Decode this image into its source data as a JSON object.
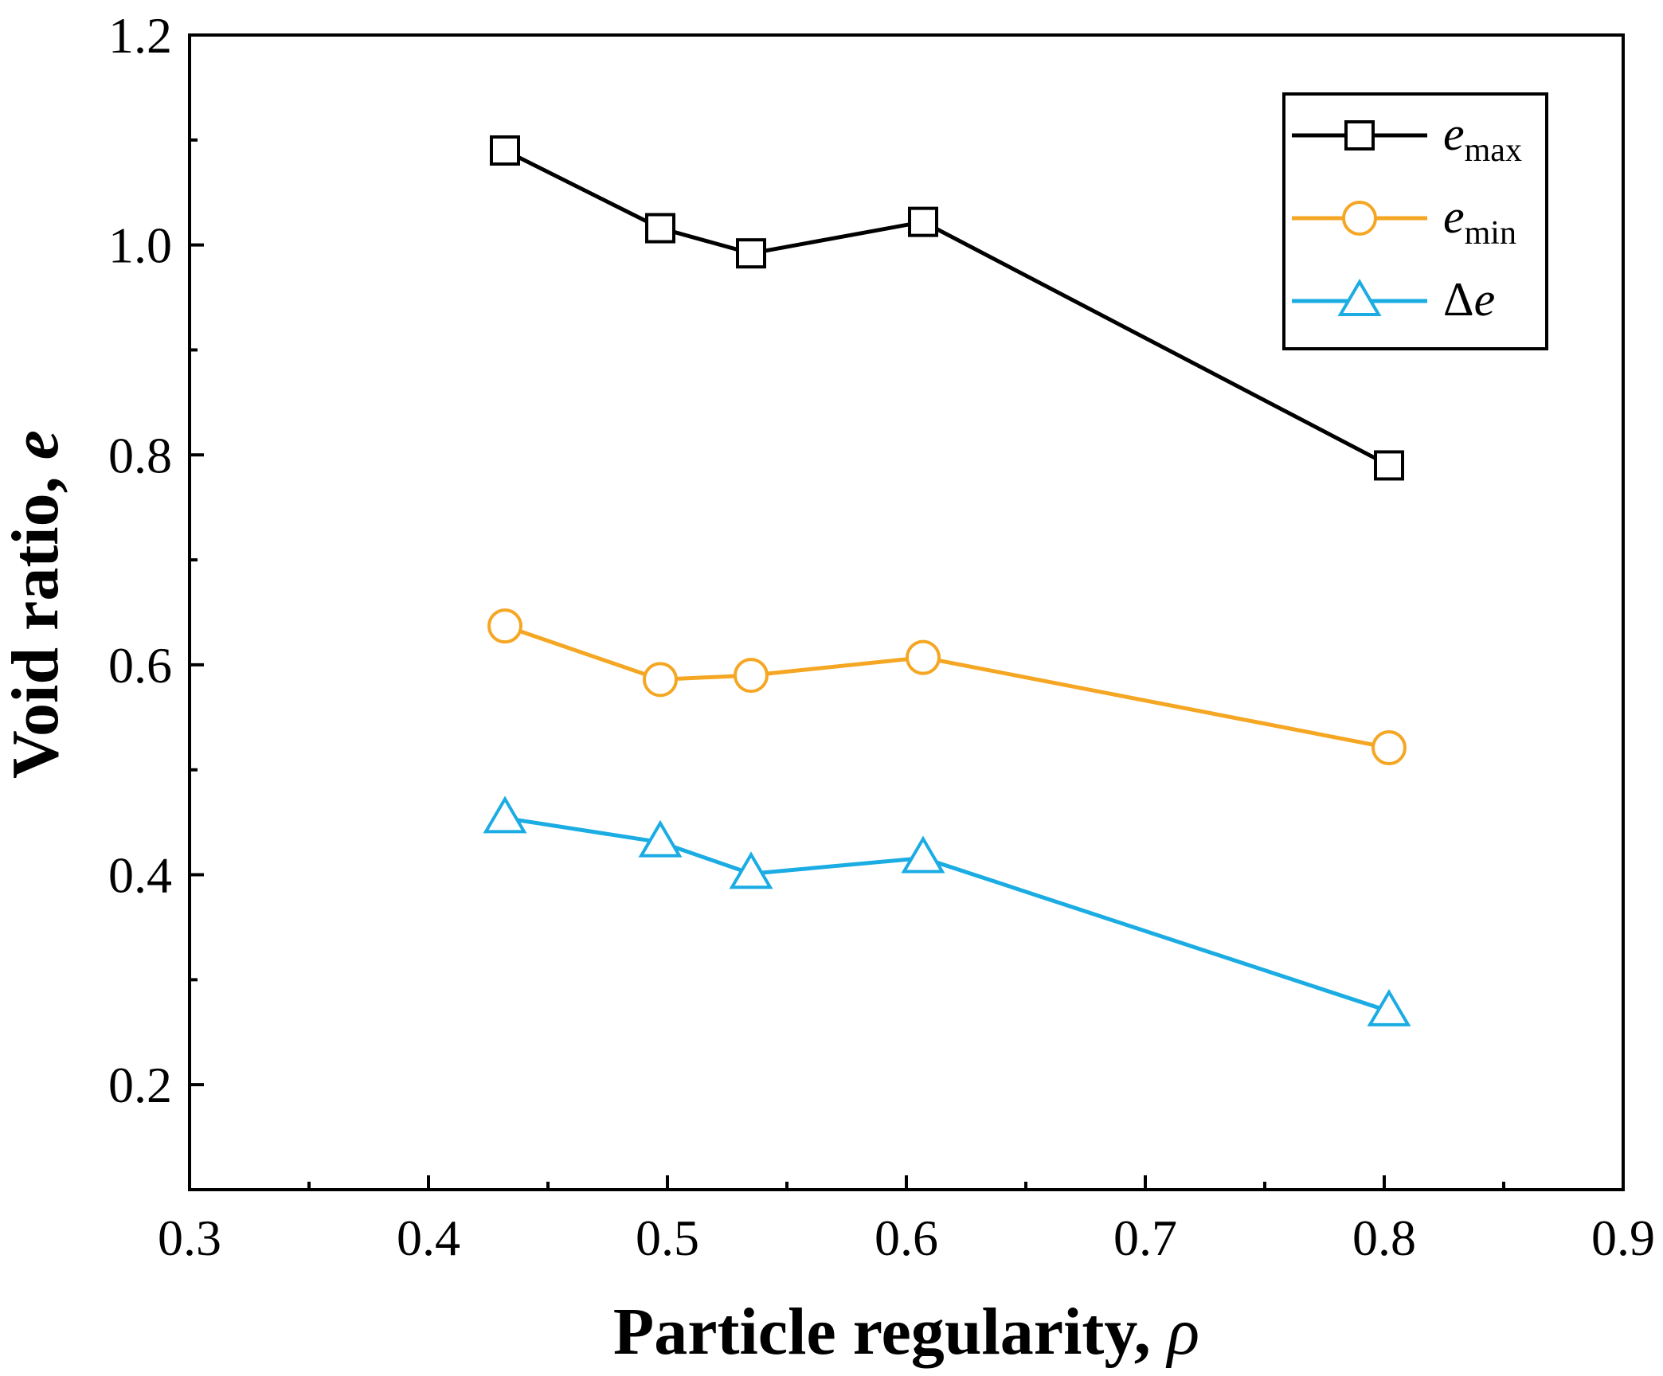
{
  "chart_data": {
    "type": "line",
    "title": "",
    "xlabel": "Particle regularity, ",
    "xlabel_symbol": "ρ",
    "ylabel": "Void ratio, ",
    "ylabel_symbol": "e",
    "xlim": [
      0.3,
      0.9
    ],
    "ylim": [
      0.1,
      1.2
    ],
    "xticks": [
      0.3,
      0.4,
      0.5,
      0.6,
      0.7,
      0.8,
      0.9
    ],
    "xtick_labels": [
      "0.3",
      "0.4",
      "0.5",
      "0.6",
      "0.7",
      "0.8",
      "0.9"
    ],
    "x_minor_ticks": [
      0.35,
      0.45,
      0.55,
      0.65,
      0.75,
      0.85
    ],
    "yticks": [
      0.2,
      0.4,
      0.6,
      0.8,
      1.0,
      1.2
    ],
    "ytick_labels": [
      "0.2",
      "0.4",
      "0.6",
      "0.8",
      "1.0",
      "1.2"
    ],
    "y_minor_ticks": [
      0.3,
      0.5,
      0.7,
      0.9,
      1.1
    ],
    "grid": false,
    "legend_position": "top-right",
    "x": [
      0.432,
      0.497,
      0.535,
      0.607,
      0.802
    ],
    "series": [
      {
        "name": "e_max",
        "legend_main": "e",
        "legend_sub": "max",
        "legend_prefix": "",
        "color": "#000000",
        "marker": "square",
        "values": [
          1.09,
          1.016,
          0.992,
          1.022,
          0.79
        ]
      },
      {
        "name": "e_min",
        "legend_main": "e",
        "legend_sub": "min",
        "legend_prefix": "",
        "color": "#F5A623",
        "marker": "circle",
        "values": [
          0.637,
          0.586,
          0.59,
          0.607,
          0.521
        ]
      },
      {
        "name": "Δe",
        "legend_main": "e",
        "legend_sub": "",
        "legend_prefix": "Δ",
        "color": "#1AACE3",
        "marker": "triangle",
        "values": [
          0.454,
          0.431,
          0.401,
          0.416,
          0.27
        ]
      }
    ]
  }
}
